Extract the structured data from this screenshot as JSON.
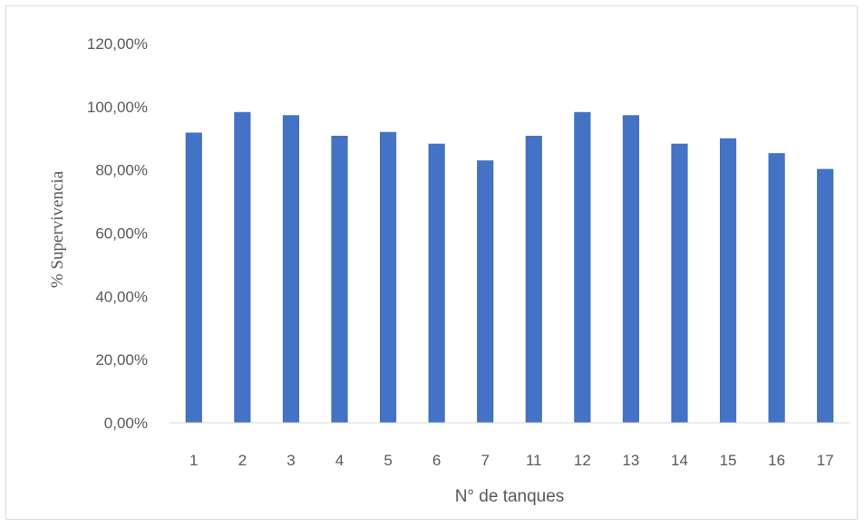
{
  "chart_data": {
    "type": "bar",
    "title": "",
    "xlabel": "N° de tanques",
    "ylabel": "% Supervivencia",
    "ylim": [
      0,
      1.2
    ],
    "yticks": [
      "0,00%",
      "20,00%",
      "40,00%",
      "60,00%",
      "80,00%",
      "100,00%",
      "120,00%"
    ],
    "categories": [
      "1",
      "2",
      "3",
      "4",
      "5",
      "6",
      "7",
      "11",
      "12",
      "13",
      "14",
      "15",
      "16",
      "17"
    ],
    "values": [
      0.918,
      0.983,
      0.973,
      0.908,
      0.92,
      0.883,
      0.83,
      0.908,
      0.983,
      0.973,
      0.883,
      0.9,
      0.853,
      0.803
    ],
    "grid": false,
    "legend": "none",
    "bar_color": "#4472c4"
  }
}
